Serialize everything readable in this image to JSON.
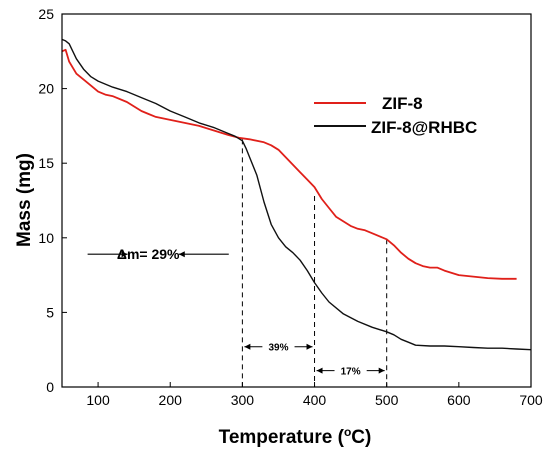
{
  "chart_data": {
    "type": "line",
    "xlabel_main": "Temperature (",
    "xlabel_sup": "o",
    "xlabel_end": "C)",
    "ylabel": "Mass (mg)",
    "xlim": [
      50,
      700
    ],
    "ylim": [
      0,
      25
    ],
    "xticks": [
      "100",
      "200",
      "300",
      "400",
      "500",
      "600",
      "700"
    ],
    "yticks": [
      "0",
      "5",
      "10",
      "15",
      "20",
      "25"
    ],
    "legend_position": "top-right",
    "series": [
      {
        "name": "ZIF-8",
        "color": "#e0201a",
        "x": [
          50,
          55,
          60,
          70,
          80,
          90,
          100,
          110,
          120,
          140,
          160,
          170,
          180,
          200,
          220,
          240,
          260,
          280,
          295,
          310,
          330,
          340,
          350,
          360,
          370,
          380,
          390,
          400,
          410,
          420,
          430,
          440,
          450,
          460,
          470,
          480,
          490,
          500,
          510,
          520,
          530,
          540,
          550,
          560,
          570,
          580,
          600,
          620,
          640,
          660,
          680
        ],
        "values": [
          22.5,
          22.6,
          21.8,
          21.0,
          20.6,
          20.2,
          19.8,
          19.6,
          19.5,
          19.1,
          18.5,
          18.3,
          18.1,
          17.9,
          17.7,
          17.5,
          17.2,
          16.9,
          16.7,
          16.6,
          16.4,
          16.2,
          15.9,
          15.4,
          14.9,
          14.4,
          13.9,
          13.4,
          12.6,
          12.0,
          11.4,
          11.1,
          10.8,
          10.6,
          10.5,
          10.3,
          10.1,
          9.9,
          9.5,
          9.0,
          8.6,
          8.3,
          8.1,
          8.0,
          8.0,
          7.8,
          7.5,
          7.4,
          7.3,
          7.25,
          7.25
        ]
      },
      {
        "name": "ZIF-8@RHBC",
        "color": "#111111",
        "x": [
          50,
          55,
          60,
          65,
          70,
          80,
          90,
          100,
          120,
          140,
          160,
          180,
          200,
          220,
          240,
          260,
          280,
          290,
          300,
          305,
          310,
          320,
          330,
          340,
          350,
          360,
          370,
          380,
          390,
          400,
          410,
          420,
          440,
          460,
          480,
          500,
          510,
          520,
          530,
          540,
          560,
          580,
          600,
          620,
          640,
          660,
          680,
          700
        ],
        "values": [
          23.3,
          23.2,
          23.0,
          22.5,
          22.0,
          21.3,
          20.8,
          20.5,
          20.1,
          19.8,
          19.4,
          19.0,
          18.5,
          18.1,
          17.7,
          17.4,
          17.0,
          16.8,
          16.5,
          16.0,
          15.4,
          14.2,
          12.4,
          10.9,
          10.0,
          9.4,
          9.0,
          8.5,
          7.8,
          7.0,
          6.3,
          5.7,
          4.9,
          4.4,
          4.0,
          3.7,
          3.5,
          3.2,
          3.0,
          2.8,
          2.75,
          2.75,
          2.7,
          2.65,
          2.6,
          2.6,
          2.55,
          2.5
        ]
      }
    ],
    "annotations": [
      {
        "label": "Δm= 29%",
        "arrow_x": [
          55,
          295
        ],
        "y": 8.9
      },
      {
        "label": "39%",
        "arrow_x": [
          300,
          400
        ],
        "y": 2.7
      },
      {
        "label": "17%",
        "arrow_x": [
          400,
          500
        ],
        "y": 1.1
      }
    ],
    "guide_lines": [
      {
        "x": 300,
        "y": 16.6
      },
      {
        "x": 400,
        "y": 12.8
      },
      {
        "x": 500,
        "y": 9.9
      }
    ]
  }
}
